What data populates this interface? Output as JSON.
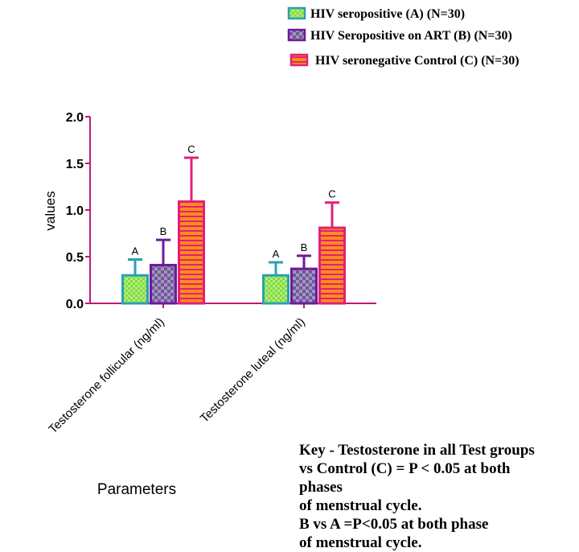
{
  "chart_data": {
    "type": "bar",
    "ylabel": "values",
    "xlabel": "Parameters",
    "ylim": [
      0,
      2.0
    ],
    "yticks": [
      "0.0",
      "0.5",
      "1.0",
      "1.5",
      "2.0"
    ],
    "categories": [
      "Testosterone follicular (ng/ml)",
      "Testosterone luteal (ng/ml)"
    ],
    "series": [
      {
        "name": "HIV seropositive (A) (N=30)",
        "values": [
          0.3,
          0.3
        ],
        "errors": [
          0.17,
          0.14
        ],
        "bar_labels": [
          "A",
          "A"
        ],
        "fill": "#b6ef68",
        "stroke": "#2aa0b3",
        "pattern": "check"
      },
      {
        "name": "HIV Seropositive on ART (B) (N=30)",
        "values": [
          0.41,
          0.37
        ],
        "errors": [
          0.27,
          0.14
        ],
        "bar_labels": [
          "B",
          "B"
        ],
        "fill": "#8a7bb0",
        "stroke": "#6a1b9a",
        "pattern": "check"
      },
      {
        "name": "HIV seronegative Control (C) (N=30)",
        "values": [
          1.09,
          0.81
        ],
        "errors": [
          0.47,
          0.27
        ],
        "bar_labels": [
          "C",
          "C"
        ],
        "fill": "#ff8c1a",
        "stroke": "#e0207a",
        "pattern": "hstripe"
      }
    ],
    "legend_position": "top-right"
  },
  "key_note": [
    "Key - Testosterone in all Test groups",
    "vs Control (C) = P < 0.05 at both",
    "phases",
    "of menstrual cycle.",
    "B vs A  =P<0.05 at both phase",
    "of menstrual cycle."
  ],
  "colors": {
    "axis": "#c0187a"
  }
}
